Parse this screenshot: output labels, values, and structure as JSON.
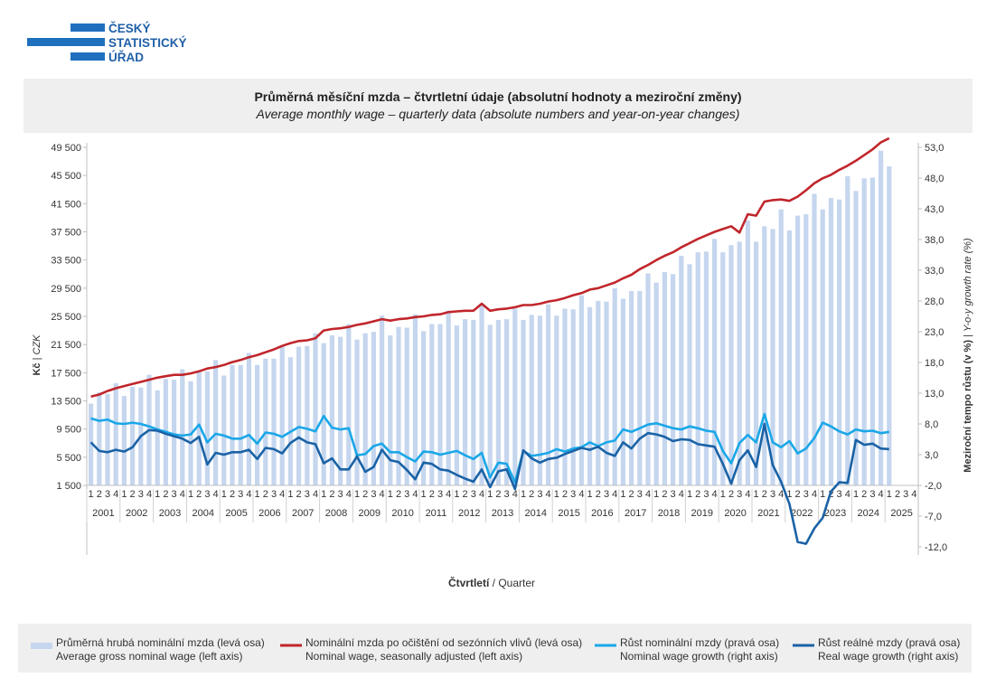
{
  "logo": {
    "line1": "ČESKÝ",
    "line2": "STATISTICKÝ",
    "line3": "ÚŘAD"
  },
  "title": {
    "cz": "Průměrná měsíční mzda – čtvrtletní údaje (absolutní hodnoty a meziroční změny)",
    "en": "Average monthly wage – quarterly data (absolute numbers and year-on-year changes)"
  },
  "axes": {
    "left_label_cz": "Kč",
    "left_label_en": "CZK",
    "right_label_cz": "Meziroční tempo růstu (v %)",
    "right_label_en": "Y-o-y growth rate (%)",
    "x_label_cz": "Čtvrtletí",
    "x_label_en": "Quarter"
  },
  "legend": [
    {
      "key": "gross",
      "cz": "Průměrná hrubá nominální mzda (levá osa)",
      "en": "Average gross nominal wage (left axis)",
      "color": "#c5d6ee"
    },
    {
      "key": "sa",
      "cz": "Nominální mzda po očištění od sezónních vlivů (levá osa)",
      "en": "Nominal wage, seasonally adjusted (left axis)",
      "color": "#c0262b"
    },
    {
      "key": "nomg",
      "cz": "Růst nominální mzdy (pravá osa)",
      "en": "Nominal wage growth (right axis)",
      "color": "#1aa7e8"
    },
    {
      "key": "realg",
      "cz": "Růst reálné mzdy (pravá osa)",
      "en": "Real wage growth (right axis)",
      "color": "#1a62a6"
    }
  ],
  "chart_data": {
    "type": "bar",
    "grid": false,
    "legend_position": "bottom",
    "x_categories": {
      "quarter_labels": [
        "1",
        "2",
        "3",
        "4"
      ],
      "years": [
        "2001",
        "2002",
        "2003",
        "2004",
        "2005",
        "2006",
        "2007",
        "2008",
        "2009",
        "2010",
        "2011",
        "2012",
        "2013",
        "2014",
        "2015",
        "2016",
        "2017",
        "2018",
        "2019",
        "2020",
        "2021",
        "2022",
        "2023",
        "2024",
        "2025"
      ]
    },
    "left_axis": {
      "ylim": [
        -2500,
        51500
      ],
      "ticks": [
        1500,
        5500,
        9500,
        13500,
        17500,
        21500,
        25500,
        29500,
        33500,
        37500,
        41500,
        45500,
        49500
      ],
      "tick_labels": [
        "1 500",
        "5 500",
        "9 500",
        "13 500",
        "17 500",
        "21 500",
        "25 500",
        "29 500",
        "33 500",
        "37 500",
        "41 500",
        "45 500",
        "49 500"
      ]
    },
    "right_axis": {
      "ylim": [
        -12,
        53
      ],
      "ticks": [
        -12,
        -7,
        -2,
        3,
        8,
        13,
        18,
        23,
        28,
        33,
        38,
        43,
        48,
        53
      ],
      "tick_labels": [
        "-12,0",
        "-7,0",
        "-2,0",
        "3,0",
        "8,0",
        "13,0",
        "18,0",
        "23,0",
        "28,0",
        "33,0",
        "38,0",
        "43,0",
        "48,0",
        "53,0"
      ]
    },
    "series": [
      {
        "name": "Průměrná hrubá nominální mzda (levá osa)",
        "axis": "left",
        "type": "bar",
        "values": [
          13100,
          14700,
          14500,
          16000,
          14200,
          15500,
          15400,
          17200,
          15000,
          16600,
          16500,
          18000,
          16300,
          17600,
          17700,
          19300,
          17100,
          18600,
          18600,
          20300,
          18600,
          19500,
          19500,
          21400,
          19700,
          21200,
          21300,
          23100,
          21700,
          22800,
          22600,
          24400,
          22200,
          23100,
          23300,
          25600,
          22800,
          24000,
          23900,
          25800,
          23400,
          24400,
          24400,
          26300,
          24200,
          25100,
          25000,
          27200,
          24300,
          25000,
          25100,
          26600,
          25000,
          25700,
          25600,
          27200,
          25600,
          26600,
          26500,
          28500,
          26800,
          27700,
          27600,
          29500,
          28000,
          29100,
          29100,
          31600,
          30300,
          31800,
          31500,
          34100,
          32900,
          34600,
          34700,
          36500,
          34600,
          35600,
          36100,
          39100,
          36100,
          38300,
          37900,
          40700,
          37700,
          39800,
          40000,
          42900,
          40700,
          42300,
          42100,
          45400,
          43300,
          45100,
          45200,
          49000,
          46800
        ]
      },
      {
        "name": "Nominální mzda po očištění od sezónních vlivů (levá osa)",
        "axis": "left",
        "type": "line",
        "values": [
          14100,
          14400,
          14900,
          15300,
          15600,
          15900,
          16200,
          16500,
          16800,
          17000,
          17200,
          17200,
          17400,
          17700,
          18100,
          18300,
          18600,
          19000,
          19300,
          19700,
          20000,
          20400,
          20800,
          21300,
          21700,
          22000,
          22100,
          22400,
          23500,
          23700,
          23800,
          24000,
          24300,
          24500,
          24800,
          25100,
          24900,
          25100,
          25200,
          25400,
          25500,
          25700,
          25800,
          26100,
          26200,
          26300,
          26300,
          27300,
          26300,
          26500,
          26600,
          26800,
          27100,
          27100,
          27300,
          27600,
          27800,
          28100,
          28500,
          28800,
          29300,
          29500,
          29900,
          30300,
          30900,
          31400,
          32200,
          32800,
          33500,
          34100,
          34600,
          35300,
          35900,
          36500,
          37000,
          37500,
          37900,
          38300,
          37400,
          40000,
          39800,
          41800,
          42000,
          42100,
          41900,
          42500,
          43400,
          44400,
          45100,
          45600,
          46300,
          46900,
          47600,
          48400,
          49200,
          50200,
          50800
        ]
      },
      {
        "name": "Růst nominální mzdy (pravá osa)",
        "axis": "right",
        "type": "line",
        "values": [
          8.9,
          8.5,
          8.7,
          8.1,
          8.0,
          8.2,
          8.0,
          7.6,
          7.1,
          6.7,
          6.3,
          6.1,
          6.3,
          7.9,
          5.0,
          6.4,
          6.1,
          5.6,
          5.6,
          6.2,
          4.8,
          6.6,
          6.4,
          5.9,
          6.7,
          7.5,
          7.2,
          6.8,
          9.3,
          7.4,
          7.1,
          7.3,
          2.9,
          3.1,
          4.4,
          4.8,
          3.4,
          3.4,
          2.6,
          1.9,
          3.5,
          3.4,
          3.0,
          3.3,
          3.6,
          2.9,
          2.3,
          3.3,
          -0.7,
          1.7,
          1.5,
          -1.5,
          3.6,
          2.8,
          3.0,
          3.3,
          3.9,
          3.5,
          4.0,
          4.2,
          5.0,
          4.4,
          5.0,
          5.3,
          7.1,
          6.7,
          7.3,
          7.9,
          8.1,
          7.7,
          7.3,
          7.1,
          7.6,
          7.3,
          6.9,
          6.7,
          3.6,
          1.6,
          4.9,
          6.2,
          5.0,
          9.6,
          5.0,
          4.2,
          5.2,
          3.2,
          4.0,
          5.7,
          8.2,
          7.6,
          6.8,
          6.3,
          7.1,
          6.8,
          6.9,
          6.5,
          6.7
        ]
      },
      {
        "name": "Růst reálné mzdy (pravá osa)",
        "axis": "right",
        "type": "line",
        "values": [
          5.0,
          3.6,
          3.4,
          3.8,
          3.5,
          4.2,
          6.0,
          7.0,
          6.9,
          6.4,
          6.0,
          5.6,
          4.9,
          5.9,
          1.4,
          3.3,
          3.0,
          3.4,
          3.4,
          3.8,
          2.3,
          4.1,
          3.9,
          3.2,
          4.9,
          5.8,
          5.0,
          4.7,
          1.6,
          2.4,
          0.6,
          0.6,
          2.7,
          0.2,
          1.0,
          3.8,
          2.1,
          1.8,
          0.5,
          -1.0,
          1.7,
          1.5,
          0.6,
          0.4,
          -0.3,
          -0.9,
          -1.4,
          0.6,
          -2.3,
          0.3,
          0.6,
          -2.6,
          3.7,
          2.4,
          1.7,
          2.3,
          2.5,
          3.1,
          3.6,
          4.1,
          3.8,
          4.3,
          3.3,
          2.8,
          5.0,
          4.0,
          5.6,
          6.5,
          6.3,
          5.9,
          5.2,
          5.5,
          5.4,
          4.7,
          4.5,
          4.3,
          1.5,
          -1.7,
          2.1,
          3.7,
          1.0,
          8.0,
          1.3,
          -1.4,
          -5.0,
          -11.2,
          -11.5,
          -9.0,
          -7.3,
          -3.0,
          -1.5,
          -1.6,
          5.4,
          4.6,
          4.8,
          4.0,
          3.9
        ]
      }
    ]
  }
}
